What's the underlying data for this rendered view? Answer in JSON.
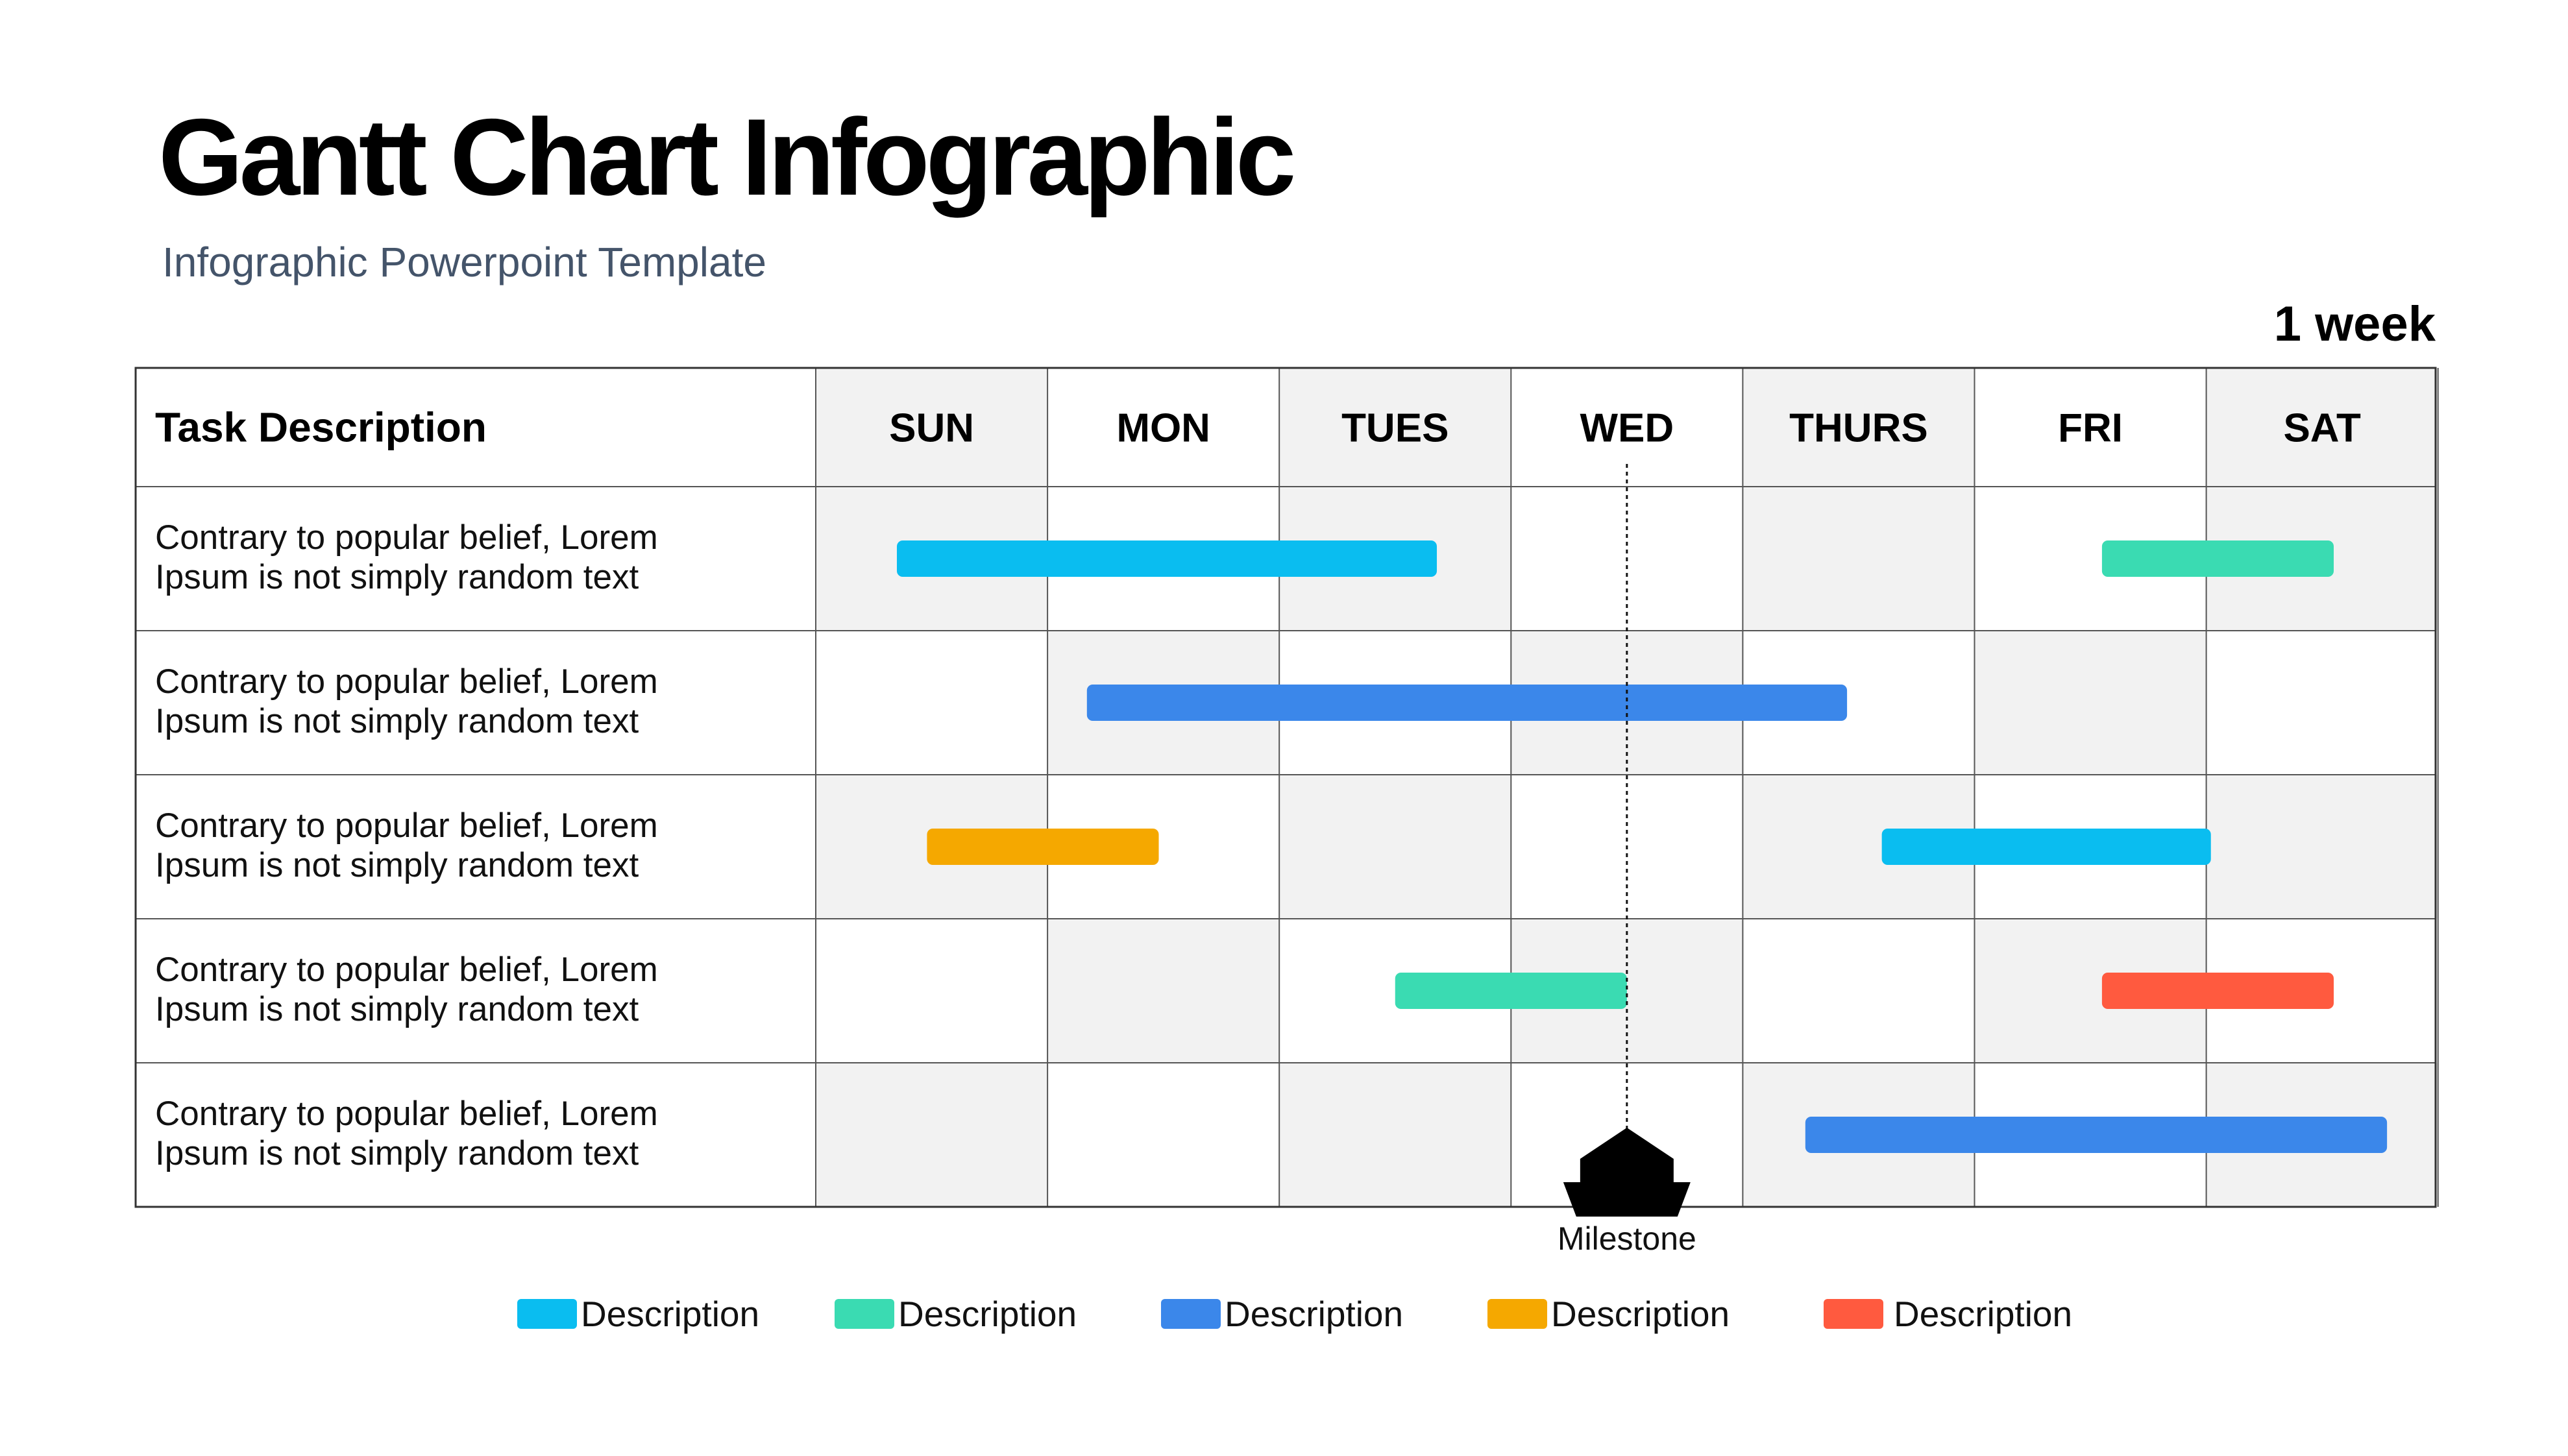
{
  "header": {
    "title": "Gantt Chart Infographic",
    "subtitle": "Infographic Powerpoint Template",
    "duration": "1 week"
  },
  "chart_data": {
    "type": "gantt",
    "task_column_header": "Task Description",
    "days": [
      "SUN",
      "MON",
      "TUES",
      "WED",
      "THURS",
      "FRI",
      "SAT"
    ],
    "tasks": [
      {
        "lines": [
          "Contrary to popular belief, Lorem",
          "Ipsum is not simply random text"
        ],
        "bars": [
          {
            "start": 0.35,
            "end": 2.68,
            "color": "#0ABDF0"
          },
          {
            "start": 5.55,
            "end": 6.55,
            "color": "#3ADBB2"
          }
        ]
      },
      {
        "lines": [
          "Contrary to popular belief, Lorem",
          "Ipsum is not simply random text"
        ],
        "bars": [
          {
            "start": 1.17,
            "end": 4.45,
            "color": "#3B87EA"
          }
        ]
      },
      {
        "lines": [
          "Contrary to popular belief, Lorem",
          "Ipsum is not simply random text"
        ],
        "bars": [
          {
            "start": 0.48,
            "end": 1.48,
            "color": "#F5A800"
          },
          {
            "start": 4.6,
            "end": 6.02,
            "color": "#0ABDF0"
          }
        ]
      },
      {
        "lines": [
          "Contrary to popular belief, Lorem",
          "Ipsum is not simply random text"
        ],
        "bars": [
          {
            "start": 2.5,
            "end": 3.5,
            "color": "#3ADBB2"
          },
          {
            "start": 5.55,
            "end": 6.55,
            "color": "#FF5A3F"
          }
        ]
      },
      {
        "lines": [
          "Contrary to popular belief, Lorem",
          "Ipsum is not simply random text"
        ],
        "bars": [
          {
            "start": 4.27,
            "end": 6.78,
            "color": "#3B87EA"
          }
        ]
      }
    ],
    "milestone": {
      "position": 3.5,
      "label": "Milestone"
    },
    "legend": [
      {
        "label": "Description",
        "color": "#0ABDF0"
      },
      {
        "label": "Description",
        "color": "#3ADBB2"
      },
      {
        "label": "Description",
        "color": "#3B87EA"
      },
      {
        "label": "Description",
        "color": "#F5A800"
      },
      {
        "label": "Description",
        "color": "#FF5A3F"
      }
    ]
  }
}
